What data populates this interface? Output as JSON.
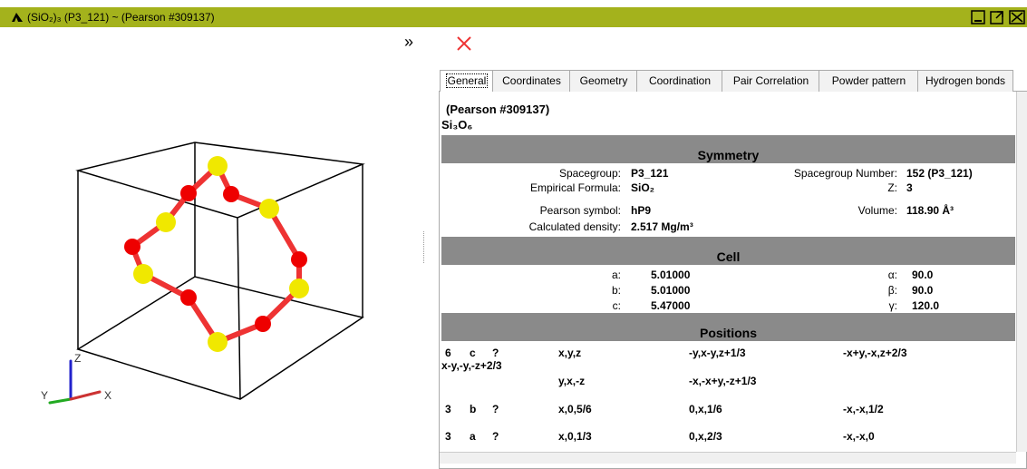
{
  "window": {
    "title": "(SiO₂)₃ (P3_121) ~ (Pearson #309137)"
  },
  "viewer": {
    "axis_z": "Z",
    "axis_y": "Y",
    "axis_x": "X"
  },
  "tabs": [
    "General",
    "Coordinates",
    "Geometry",
    "Coordination",
    "Pair Correlation",
    "Powder pattern",
    "Hydrogen bonds"
  ],
  "general": {
    "name": "(Pearson #309137)",
    "formula": "Si₃O₆",
    "symmetry": {
      "heading": "Symmetry",
      "left": [
        [
          "Spacegroup:",
          "P3_121"
        ],
        [
          "Empirical Formula:",
          "SiO₂"
        ],
        [
          "Pearson symbol:",
          "hP9"
        ],
        [
          "Calculated density:",
          "2.517 Mg/m³"
        ]
      ],
      "right": [
        [
          "Spacegroup Number:",
          "152 (P3_121)"
        ],
        [
          "Z:",
          "3"
        ],
        [
          "Volume:",
          "118.90 Å³"
        ]
      ]
    },
    "cell": {
      "heading": "Cell",
      "left": [
        [
          "a:",
          "5.01000"
        ],
        [
          "b:",
          "5.01000"
        ],
        [
          "c:",
          "5.47000"
        ]
      ],
      "right": [
        [
          "α:",
          "90.0"
        ],
        [
          "β:",
          "90.0"
        ],
        [
          "γ:",
          "120.0"
        ]
      ]
    },
    "positions": {
      "heading": "Positions",
      "rows": [
        {
          "multiplicity": "6",
          "wyckoff": "c",
          "symmetry": "?",
          "ops": [
            "x,y,z",
            "-y,x-y,z+1/3",
            "-x+y,-x,z+2/3",
            "x-y,-y,-z+2/3",
            "y,x,-z",
            "-x,-x+y,-z+1/3"
          ]
        },
        {
          "multiplicity": "3",
          "wyckoff": "b",
          "symmetry": "?",
          "ops": [
            "x,0,5/6",
            "0,x,1/6",
            "-x,-x,1/2"
          ]
        },
        {
          "multiplicity": "3",
          "wyckoff": "a",
          "symmetry": "?",
          "ops": [
            "x,0,1/3",
            "0,x,2/3",
            "-x,-x,0"
          ]
        }
      ]
    }
  }
}
